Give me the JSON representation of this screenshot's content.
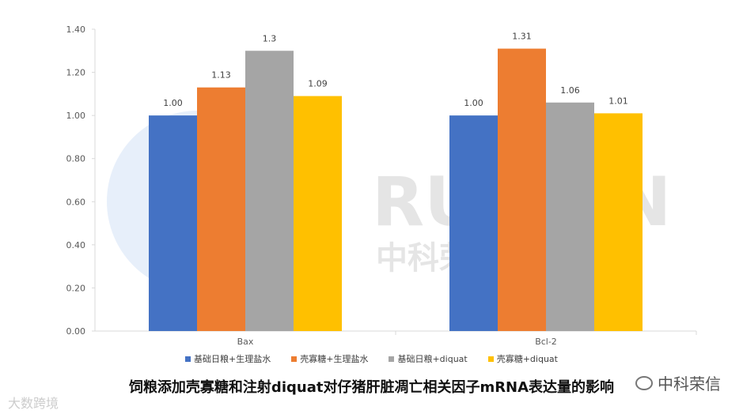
{
  "chart_data": {
    "type": "bar",
    "categories": [
      "Bax",
      "Bcl-2"
    ],
    "series": [
      {
        "name": "基础日粮+生理盐水",
        "values": [
          1.0,
          1.0
        ],
        "labels": [
          "1.00",
          "1.00"
        ],
        "color": "#4472C4"
      },
      {
        "name": "壳寡糖+生理盐水",
        "values": [
          1.13,
          1.31
        ],
        "labels": [
          "1.13",
          "1.31"
        ],
        "color": "#ED7D31"
      },
      {
        "name": "基础日粮+diquat",
        "values": [
          1.3,
          1.06
        ],
        "labels": [
          "1.3",
          "1.06"
        ],
        "color": "#A5A5A5"
      },
      {
        "name": "壳寡糖+diquat",
        "values": [
          1.09,
          1.01
        ],
        "labels": [
          "1.09",
          "1.01"
        ],
        "color": "#FFC000"
      }
    ],
    "yticks": [
      "0.00",
      "0.20",
      "0.40",
      "0.60",
      "0.80",
      "1.00",
      "1.20",
      "1.40"
    ],
    "ylim": [
      0,
      1.4
    ],
    "grid": false,
    "legend_position": "bottom"
  },
  "caption": "饲粮添加壳寡糖和注射diquat对仔猪肝脏凋亡相关因子mRNA表达量的影响",
  "brand": "中科荣信",
  "watermark_source": "大数跨境"
}
